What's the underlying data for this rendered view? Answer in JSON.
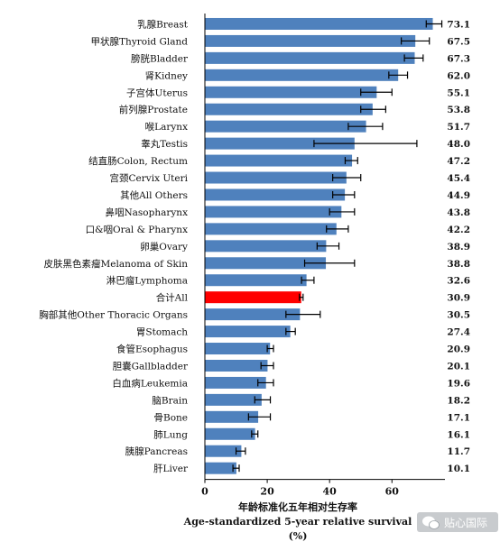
{
  "chart_data": {
    "type": "bar",
    "orientation": "horizontal",
    "categories": [
      "乳腺Breast",
      "甲状腺Thyroid Gland",
      "膀胱Bladder",
      "肾Kidney",
      "子宫体Uterus",
      "前列腺Prostate",
      "喉Larynx",
      "睾丸Testis",
      "结直肠Colon, Rectum",
      "宫颈Cervix Uteri",
      "其他All Others",
      "鼻咽Nasopharynx",
      "口&咽Oral & Pharynx",
      "卵巢Ovary",
      "皮肤黑色素瘤Melanoma of Skin",
      "淋巴瘤Lymphoma",
      "合计All",
      "胸部其他Other Thoracic Organs",
      "胃Stomach",
      "食管Esophagus",
      "胆囊Gallbladder",
      "白血病Leukemia",
      "脑Brain",
      "骨Bone",
      "肺Lung",
      "胰腺Pancreas",
      "肝Liver"
    ],
    "values": [
      73.1,
      67.5,
      67.3,
      62.0,
      55.1,
      53.8,
      51.7,
      48.0,
      47.2,
      45.4,
      44.9,
      43.8,
      42.2,
      38.9,
      38.8,
      32.6,
      30.9,
      30.5,
      27.4,
      20.9,
      20.1,
      19.6,
      18.2,
      17.1,
      16.1,
      11.7,
      10.1
    ],
    "value_labels": [
      "73.1",
      "67.5",
      "67.3",
      "62.0",
      "55.1",
      "53.8",
      "51.7",
      "48.0",
      "47.2",
      "45.4",
      "44.9",
      "43.8",
      "42.2",
      "38.9",
      "38.8",
      "32.6",
      "30.9",
      "30.5",
      "27.4",
      "20.9",
      "20.1",
      "19.6",
      "18.2",
      "17.1",
      "16.1",
      "11.7",
      "10.1"
    ],
    "error_low": [
      71,
      63,
      64,
      59,
      50,
      50,
      46,
      35,
      45,
      41,
      41,
      40,
      39,
      36,
      32,
      31,
      30.3,
      26,
      26,
      20,
      18,
      17,
      16,
      14,
      15,
      10,
      9
    ],
    "error_high": [
      76,
      72,
      70,
      65,
      60,
      58,
      57,
      68,
      49,
      50,
      48,
      48,
      46,
      43,
      48,
      35,
      31.5,
      37,
      29,
      22,
      22,
      22,
      21,
      21,
      17,
      13,
      11
    ],
    "highlight_category": "合计All",
    "bar_color": "#4f81bd",
    "highlight_color": "#ff0000",
    "error_bar_color": "#000000",
    "xlim": [
      0,
      77
    ],
    "x_ticks": [
      0,
      20,
      40,
      60
    ],
    "x_tick_labels": [
      "0",
      "20",
      "40",
      "60"
    ],
    "xlabel_line1": "年龄标准化五年相对生存率",
    "xlabel_line2": "Age-standardized 5-year relative survival",
    "xlabel_line3": "(%)",
    "grid": false,
    "legend": "none"
  },
  "watermark": {
    "text": "贴心国际",
    "icon": "wechat-icon"
  }
}
